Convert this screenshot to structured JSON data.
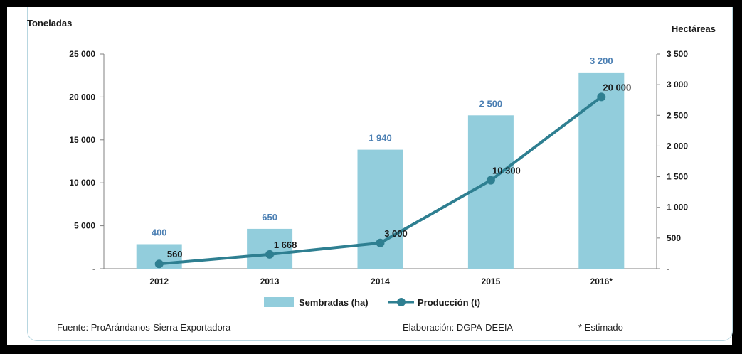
{
  "chart_data": {
    "type": "bar",
    "left_axis_title": "Toneladas",
    "right_axis_title": "Hectáreas",
    "categories": [
      "2012",
      "2013",
      "2014",
      "2015",
      "2016*"
    ],
    "y_left": {
      "range": [
        0,
        25000
      ],
      "ticks": [
        0,
        5000,
        10000,
        15000,
        20000,
        25000
      ],
      "tick_labels": [
        "-",
        "5 000",
        "10 000",
        "15 000",
        "20 000",
        "25 000"
      ]
    },
    "y_right": {
      "range": [
        0,
        3500
      ],
      "ticks": [
        0,
        500,
        1000,
        1500,
        2000,
        2500,
        3000,
        3500
      ],
      "tick_labels": [
        "-",
        "500",
        "1 000",
        "1 500",
        "2 000",
        "2 500",
        "3 000",
        "3 500"
      ]
    },
    "series": [
      {
        "name": "Sembradas (ha)",
        "type": "bar",
        "axis": "right",
        "values": [
          400,
          650,
          1940,
          2500,
          3200
        ],
        "labels": [
          "400",
          "650",
          "1 940",
          "2 500",
          "3 200"
        ]
      },
      {
        "name": "Producción (t)",
        "type": "line",
        "axis": "left",
        "values": [
          560,
          1668,
          3000,
          10300,
          20000
        ],
        "labels": [
          "560",
          "1 668",
          "3 000",
          "10 300",
          "20 000"
        ]
      }
    ],
    "colors": {
      "bar": "#92cddc",
      "line": "#2e7f91",
      "bar_label": "#4b7fb3",
      "line_label": "#1a1a1a"
    },
    "legend_position": "bottom",
    "grid": false
  },
  "footer": {
    "source": "Fuente: ProArándanos-Sierra Exportadora",
    "elaboration": "Elaboración: DGPA-DEEIA",
    "note": "* Estimado"
  }
}
